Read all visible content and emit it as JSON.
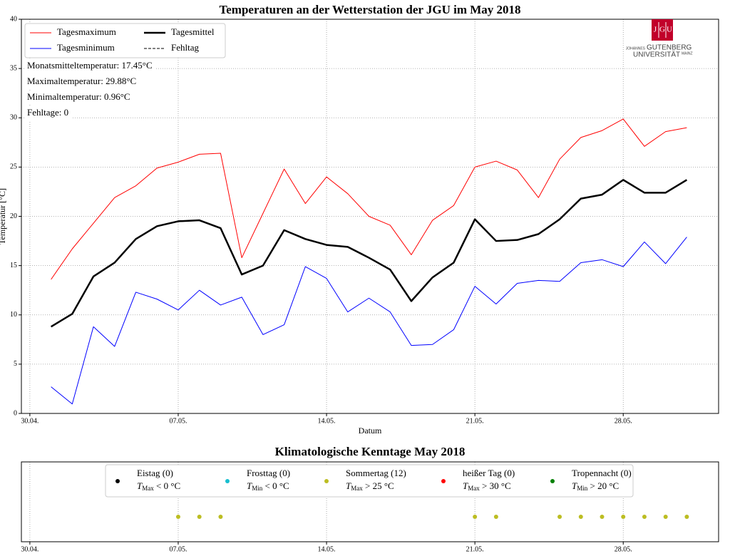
{
  "chart_data": [
    {
      "type": "line",
      "title": "Temperaturen an der Wetterstation der JGU im May 2018",
      "xlabel": "Datum",
      "ylabel": "Temperatur [°C]",
      "x": [
        1,
        2,
        3,
        4,
        5,
        6,
        7,
        8,
        9,
        10,
        11,
        12,
        13,
        14,
        15,
        16,
        17,
        18,
        19,
        20,
        21,
        22,
        23,
        24,
        25,
        26,
        27,
        28,
        29,
        30,
        31
      ],
      "xlim": [
        -0.4,
        32.5
      ],
      "xticks": [
        {
          "value": 0,
          "label": "30.04."
        },
        {
          "value": 7,
          "label": "07.05."
        },
        {
          "value": 14,
          "label": "14.05."
        },
        {
          "value": 21,
          "label": "21.05."
        },
        {
          "value": 28,
          "label": "28.05."
        }
      ],
      "ylim": [
        0,
        40
      ],
      "yticks": [
        0,
        5,
        10,
        15,
        20,
        25,
        30,
        35,
        40
      ],
      "grid": true,
      "legend": "upper left",
      "series": [
        {
          "name": "Tagesmaximum",
          "color": "#ff0000",
          "linewidth": 1,
          "linestyle": "solid",
          "values": [
            13.6,
            16.7,
            19.3,
            21.9,
            23.1,
            24.9,
            25.5,
            26.3,
            26.4,
            15.8,
            20.3,
            24.8,
            21.3,
            24.0,
            22.3,
            20.0,
            19.1,
            16.1,
            19.6,
            21.1,
            25.0,
            25.6,
            24.7,
            21.9,
            25.8,
            28.0,
            28.7,
            29.88,
            27.1,
            28.6,
            29.0
          ]
        },
        {
          "name": "Tagesminimum",
          "color": "#0000ff",
          "linewidth": 1,
          "linestyle": "solid",
          "values": [
            2.7,
            0.96,
            8.8,
            6.8,
            12.3,
            11.6,
            10.5,
            12.5,
            11.0,
            11.8,
            8.0,
            9.0,
            14.9,
            13.7,
            10.3,
            11.7,
            10.3,
            6.9,
            7.0,
            8.5,
            12.9,
            11.1,
            13.2,
            13.5,
            13.4,
            15.3,
            15.6,
            14.9,
            17.4,
            15.2,
            17.9
          ]
        },
        {
          "name": "Tagesmittel",
          "color": "#000000",
          "linewidth": 2.5,
          "linestyle": "solid",
          "values": [
            8.8,
            10.1,
            13.9,
            15.3,
            17.7,
            19.0,
            19.5,
            19.6,
            18.8,
            14.1,
            15.0,
            18.6,
            17.7,
            17.1,
            16.9,
            15.8,
            14.6,
            11.4,
            13.8,
            15.3,
            19.7,
            17.5,
            17.6,
            18.2,
            19.7,
            21.8,
            22.2,
            23.7,
            22.4,
            22.4,
            23.7
          ]
        },
        {
          "name": "Fehltag",
          "color": "#000000",
          "linewidth": 1,
          "linestyle": "dashed",
          "values": [
            null,
            null,
            null,
            null,
            null,
            null,
            null,
            null,
            null,
            null,
            null,
            null,
            null,
            null,
            null,
            null,
            null,
            null,
            null,
            null,
            null,
            null,
            null,
            null,
            null,
            null,
            null,
            null,
            null,
            null,
            null
          ]
        }
      ],
      "annotations": [
        "Monatsmitteltemperatur: 17.45°C",
        "Maximaltemperatur: 29.88°C",
        "Minimaltemperatur: 0.96°C",
        "Fehltage: 0"
      ]
    },
    {
      "type": "scatter",
      "title": "Klimatologische Kenntage May 2018",
      "xlabel": "Datum",
      "xlim": [
        -0.4,
        32.5
      ],
      "xticks": [
        {
          "value": 0,
          "label": "30.04."
        },
        {
          "value": 7,
          "label": "07.05."
        },
        {
          "value": 14,
          "label": "14.05."
        },
        {
          "value": 21,
          "label": "21.05."
        },
        {
          "value": 28,
          "label": "28.05."
        }
      ],
      "grid": true,
      "legend": "upper center",
      "series": [
        {
          "name": "Eistag (0)",
          "color": "#000000",
          "condition": {
            "symbol": "T",
            "subscript": "Max",
            "text": " < 0 °C"
          },
          "x": []
        },
        {
          "name": "Frosttag (0)",
          "color": "#17becf",
          "condition": {
            "symbol": "T",
            "subscript": "Min",
            "text": " < 0 °C"
          },
          "x": []
        },
        {
          "name": "Sommertag (12)",
          "color": "#bcbd22",
          "condition": {
            "symbol": "T",
            "subscript": "Max",
            "text": " > 25 °C"
          },
          "x": [
            7,
            8,
            9,
            21,
            22,
            25,
            26,
            27,
            28,
            29,
            30,
            31
          ]
        },
        {
          "name": "heißer Tag (0)",
          "color": "#ff0000",
          "condition": {
            "symbol": "T",
            "subscript": "Max",
            "text": " > 30 °C"
          },
          "x": []
        },
        {
          "name": "Tropennacht (0)",
          "color": "#008000",
          "condition": {
            "symbol": "T",
            "subscript": "Min",
            "text": " > 20 °C"
          },
          "x": []
        }
      ]
    }
  ],
  "logo": {
    "letters": [
      "J",
      "G",
      "U"
    ],
    "lines": [
      "JOHANNES",
      "GUTENBERG",
      "UNIVERSITÄT",
      "MAINZ"
    ]
  }
}
